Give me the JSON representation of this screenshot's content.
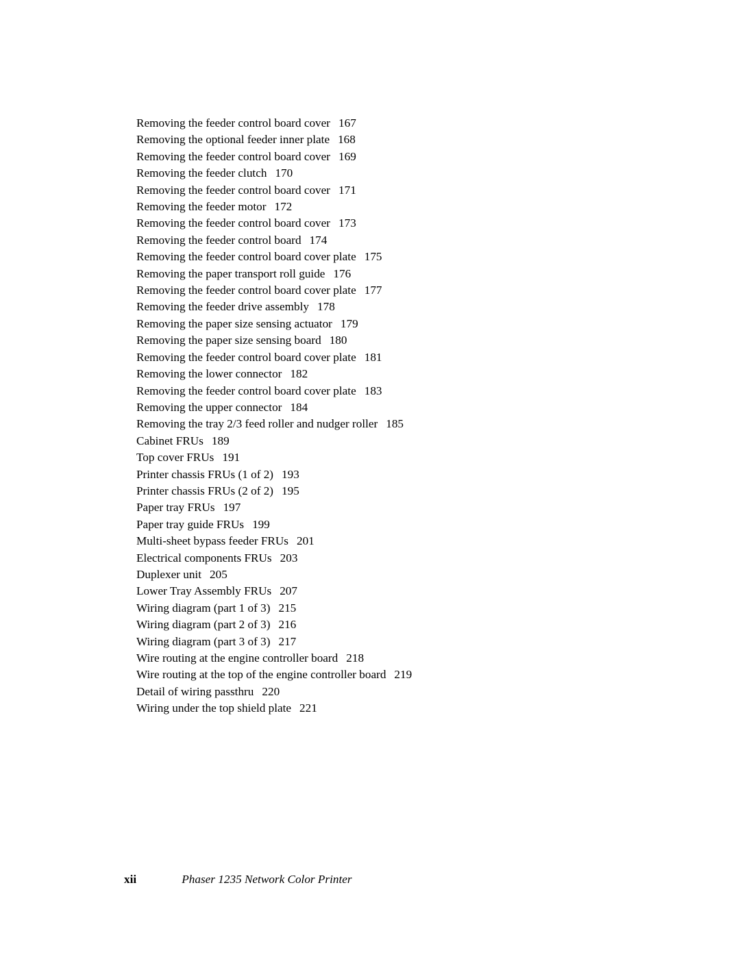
{
  "toc": [
    {
      "title": "Removing the feeder control board cover",
      "page": "167"
    },
    {
      "title": "Removing the optional feeder inner plate",
      "page": "168"
    },
    {
      "title": "Removing the feeder control board cover",
      "page": "169"
    },
    {
      "title": "Removing the feeder clutch",
      "page": "170"
    },
    {
      "title": "Removing the feeder control board cover",
      "page": "171"
    },
    {
      "title": "Removing the feeder motor",
      "page": "172"
    },
    {
      "title": "Removing the feeder control board cover",
      "page": "173"
    },
    {
      "title": "Removing the feeder control board",
      "page": "174"
    },
    {
      "title": "Removing the feeder control board cover plate",
      "page": "175"
    },
    {
      "title": "Removing the paper transport roll guide",
      "page": "176"
    },
    {
      "title": "Removing the feeder control board cover plate",
      "page": "177"
    },
    {
      "title": "Removing the feeder drive assembly",
      "page": "178"
    },
    {
      "title": "Removing the paper size sensing actuator",
      "page": "179"
    },
    {
      "title": "Removing the paper size sensing board",
      "page": "180"
    },
    {
      "title": "Removing the feeder control board cover plate",
      "page": "181"
    },
    {
      "title": "Removing the lower connector",
      "page": "182"
    },
    {
      "title": "Removing the feeder control board cover plate",
      "page": "183"
    },
    {
      "title": "Removing the upper connector",
      "page": "184"
    },
    {
      "title": "Removing the tray 2/3 feed roller and nudger roller",
      "page": "185"
    },
    {
      "title": "Cabinet FRUs",
      "page": "189"
    },
    {
      "title": "Top cover FRUs",
      "page": "191"
    },
    {
      "title": "Printer chassis FRUs (1 of 2)",
      "page": "193"
    },
    {
      "title": "Printer chassis FRUs (2 of 2)",
      "page": "195"
    },
    {
      "title": "Paper tray FRUs",
      "page": "197"
    },
    {
      "title": "Paper tray guide FRUs",
      "page": "199"
    },
    {
      "title": "Multi-sheet bypass feeder FRUs",
      "page": "201"
    },
    {
      "title": "Electrical components FRUs",
      "page": "203"
    },
    {
      "title": "Duplexer unit",
      "page": "205"
    },
    {
      "title": "Lower Tray Assembly FRUs",
      "page": "207"
    },
    {
      "title": "Wiring diagram (part 1 of 3)",
      "page": "215"
    },
    {
      "title": "Wiring diagram (part 2 of 3)",
      "page": "216"
    },
    {
      "title": "Wiring diagram (part 3 of 3)",
      "page": "217"
    },
    {
      "title": "Wire routing at the engine controller board",
      "page": "218"
    },
    {
      "title": "Wire routing at the top of the engine controller board",
      "page": "219"
    },
    {
      "title": "Detail of wiring passthru",
      "page": "220"
    },
    {
      "title": "Wiring under the top shield plate",
      "page": "221"
    }
  ],
  "footer": {
    "page_number": "xii",
    "title": "Phaser 1235 Network Color Printer"
  }
}
